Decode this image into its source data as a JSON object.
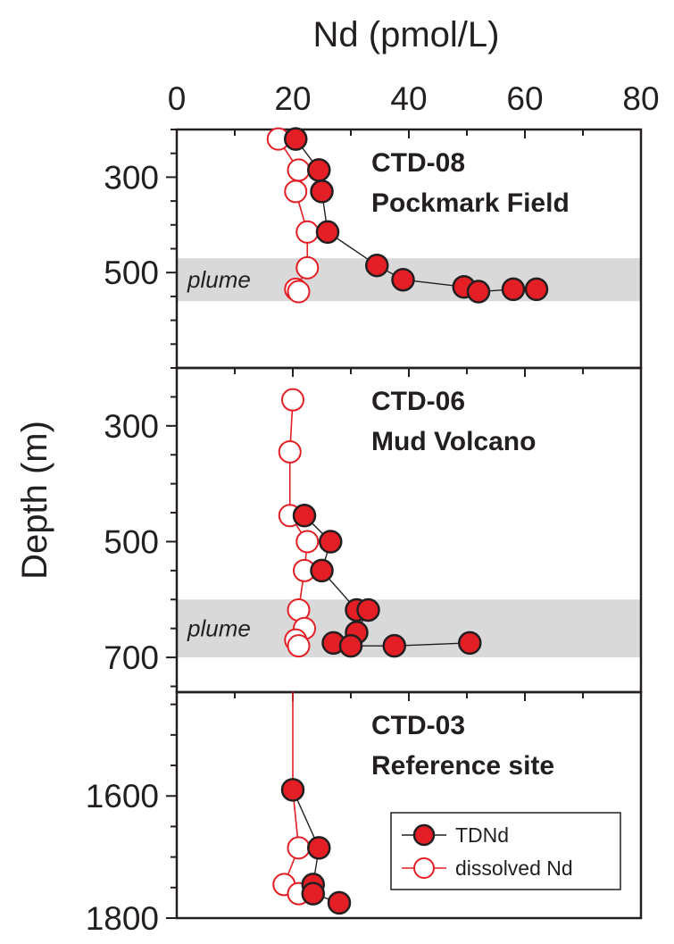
{
  "chart_data": {
    "type": "scatter",
    "title": "",
    "xlabel": "Nd (pmol/L)",
    "ylabel": "Depth (m)",
    "xlim": [
      0,
      80
    ],
    "x_ticks": [
      "0",
      "20",
      "40",
      "60",
      "80"
    ],
    "x_axis_position": "top",
    "colors": {
      "axis": "#231f20",
      "tdnd_fill": "#e31e24",
      "tdnd_line": "#231f20",
      "dissolved_line": "#e31e24",
      "plume_band": "#d9d9d9"
    },
    "legend": {
      "placement": "bottom-right of lowest panel",
      "entries": [
        "TDNd",
        "dissolved Nd"
      ]
    },
    "panels": [
      {
        "title_line1": "CTD-08",
        "title_line2": "Pockmark Field",
        "ylim": [
          200,
          700
        ],
        "y_ticks": [
          "300",
          "500"
        ],
        "y_tick_values": [
          300,
          500
        ],
        "plume_label": "plume",
        "plume_range": [
          470,
          560
        ],
        "series": [
          {
            "name": "TDNd",
            "points": [
              [
                20.5,
                220
              ],
              [
                24.5,
                285
              ],
              [
                25,
                330
              ],
              [
                26,
                415
              ],
              [
                34.5,
                485
              ],
              [
                39,
                515
              ],
              [
                49.5,
                530
              ],
              [
                52,
                540
              ],
              [
                58,
                535
              ],
              [
                62,
                535
              ]
            ]
          },
          {
            "name": "dissolved Nd",
            "points": [
              [
                17.5,
                220
              ],
              [
                21,
                285
              ],
              [
                20.5,
                330
              ],
              [
                22.5,
                415
              ],
              [
                22.5,
                490
              ],
              [
                20.5,
                535
              ],
              [
                21,
                540
              ]
            ]
          }
        ]
      },
      {
        "title_line1": "CTD-06",
        "title_line2": "Mud Volcano",
        "ylim": [
          200,
          760
        ],
        "y_ticks": [
          "300",
          "500",
          "700"
        ],
        "y_tick_values": [
          300,
          500,
          700
        ],
        "plume_label": "plume",
        "plume_range": [
          600,
          700
        ],
        "series": [
          {
            "name": "TDNd",
            "points": [
              [
                22,
                455
              ],
              [
                26.5,
                500
              ],
              [
                25,
                550
              ],
              [
                31,
                618
              ],
              [
                33,
                618
              ],
              [
                31,
                657
              ],
              [
                27,
                675
              ],
              [
                30,
                680
              ],
              [
                37.5,
                680
              ],
              [
                50.5,
                675
              ]
            ]
          },
          {
            "name": "dissolved Nd",
            "points": [
              [
                20,
                255
              ],
              [
                19.5,
                345
              ],
              [
                19.5,
                455
              ],
              [
                22.5,
                500
              ],
              [
                22,
                550
              ],
              [
                21,
                618
              ],
              [
                22,
                650
              ],
              [
                20.5,
                670
              ],
              [
                21,
                680
              ]
            ]
          }
        ]
      },
      {
        "title_line1": "CTD-03",
        "title_line2": "Reference site",
        "ylim": [
          1430,
          1800
        ],
        "y_ticks": [
          "1600",
          "1800"
        ],
        "y_tick_values": [
          1600,
          1800
        ],
        "series": [
          {
            "name": "TDNd",
            "points": [
              [
                20,
                1590
              ],
              [
                24.5,
                1685
              ],
              [
                23.5,
                1745
              ],
              [
                23.5,
                1760
              ],
              [
                28,
                1775
              ]
            ]
          },
          {
            "name": "dissolved Nd",
            "points": [
              [
                20,
                1430
              ],
              [
                20,
                1590
              ],
              [
                21,
                1685
              ],
              [
                18.5,
                1745
              ],
              [
                21,
                1760
              ]
            ]
          }
        ]
      }
    ]
  }
}
